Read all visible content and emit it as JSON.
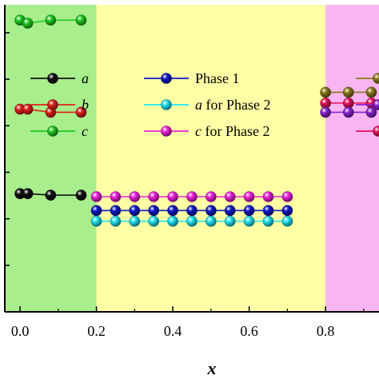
{
  "chart_data": {
    "type": "scatter",
    "title": "",
    "xlabel": "x",
    "ylabel": "",
    "xlim": [
      -0.04,
      0.94
    ],
    "xticks": [
      "0.0",
      "0.2",
      "0.4",
      "0.6",
      "0.8"
    ],
    "grid": false,
    "regions": [
      {
        "x0": -0.04,
        "x1": 0.2,
        "color": "#a8ee8c"
      },
      {
        "x0": 0.2,
        "x1": 0.8,
        "color": "#ffffa6"
      },
      {
        "x0": 0.8,
        "x1": 0.94,
        "color": "#f7b6f2"
      }
    ],
    "series": [
      {
        "key": "c_green",
        "color": "#22cc22",
        "marker": "circle",
        "x": [
          0.0,
          0.02,
          0.08,
          0.16
        ],
        "y": [
          0.95,
          0.94,
          0.95,
          0.95
        ]
      },
      {
        "key": "b_red",
        "color": "#e0201a",
        "marker": "circle",
        "x": [
          0.0,
          0.02,
          0.08,
          0.16
        ],
        "y": [
          0.66,
          0.66,
          0.65,
          0.65
        ]
      },
      {
        "key": "a_black",
        "color": "#111111",
        "marker": "circle",
        "x": [
          0.0,
          0.02,
          0.08,
          0.16
        ],
        "y": [
          0.385,
          0.385,
          0.38,
          0.38
        ]
      },
      {
        "key": "c_phase2",
        "color": "#ee22dd",
        "marker": "circle",
        "x": [
          0.2,
          0.25,
          0.3,
          0.35,
          0.4,
          0.45,
          0.5,
          0.55,
          0.6,
          0.65,
          0.7
        ],
        "y": [
          0.375,
          0.375,
          0.375,
          0.375,
          0.375,
          0.375,
          0.375,
          0.375,
          0.375,
          0.375,
          0.375
        ]
      },
      {
        "key": "phase1",
        "color": "#1018c8",
        "marker": "circle",
        "x": [
          0.2,
          0.25,
          0.3,
          0.35,
          0.4,
          0.45,
          0.5,
          0.55,
          0.6,
          0.65,
          0.7
        ],
        "y": [
          0.33,
          0.33,
          0.33,
          0.33,
          0.33,
          0.33,
          0.33,
          0.33,
          0.33,
          0.33,
          0.33
        ]
      },
      {
        "key": "a_phase2",
        "color": "#22e4f4",
        "marker": "circle",
        "x": [
          0.2,
          0.25,
          0.3,
          0.35,
          0.4,
          0.45,
          0.5,
          0.55,
          0.6,
          0.65,
          0.7
        ],
        "y": [
          0.295,
          0.295,
          0.295,
          0.295,
          0.295,
          0.295,
          0.295,
          0.295,
          0.295,
          0.295,
          0.295
        ]
      },
      {
        "key": "olive",
        "color": "#8a7a18",
        "marker": "circle",
        "x": [
          0.8,
          0.86,
          0.92
        ],
        "y": [
          0.715,
          0.715,
          0.715
        ]
      },
      {
        "key": "crimson",
        "color": "#e8105a",
        "marker": "circle",
        "x": [
          0.8,
          0.86,
          0.92
        ],
        "y": [
          0.68,
          0.68,
          0.68
        ]
      },
      {
        "key": "purple",
        "color": "#8a22d0",
        "marker": "circle",
        "x": [
          0.8,
          0.86,
          0.92
        ],
        "y": [
          0.65,
          0.65,
          0.65
        ]
      }
    ],
    "legend": {
      "placement": "top-left and top-center",
      "entries": [
        {
          "series": "a_black",
          "label": "a",
          "italic": true
        },
        {
          "series": "b_red",
          "label": "b",
          "italic": true
        },
        {
          "series": "c_green",
          "label": "c",
          "italic": true
        },
        {
          "series": "phase1",
          "label": "Phase 1",
          "italic": false
        },
        {
          "series": "a_phase2",
          "label_italic": "a",
          "label_rest": " for Phase 2"
        },
        {
          "series": "c_phase2",
          "label_italic": "c",
          "label_rest": " for Phase 2"
        },
        {
          "series": "olive",
          "label": ""
        },
        {
          "series": "purple",
          "label": ""
        },
        {
          "series": "crimson",
          "label": ""
        }
      ]
    }
  }
}
